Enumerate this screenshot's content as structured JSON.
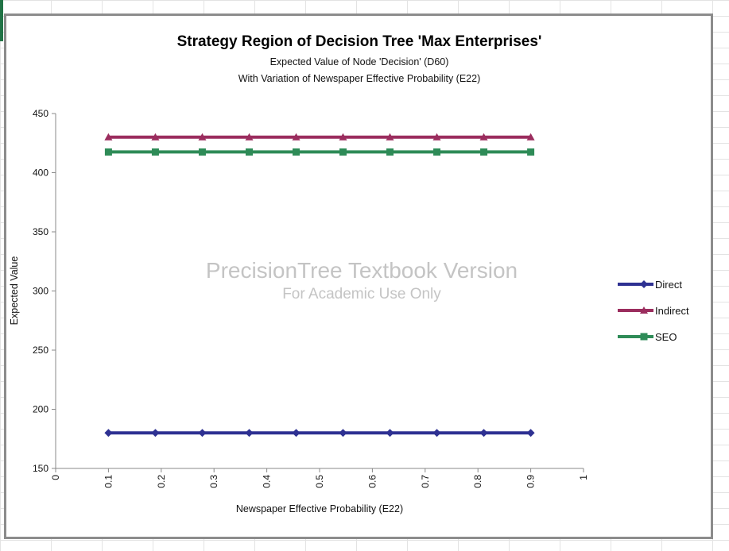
{
  "chart_data": {
    "type": "line",
    "title": "Strategy Region of Decision Tree 'Max Enterprises'",
    "subtitle_1": "Expected Value of Node 'Decision' (D60)",
    "subtitle_2": "With Variation of Newspaper Effective Probability (E22)",
    "xlabel": "Newspaper Effective Probability (E22)",
    "ylabel": "Expected Value",
    "xlim": [
      0,
      1
    ],
    "ylim": [
      150,
      450
    ],
    "x_ticks": [
      "0",
      "0.1",
      "0.2",
      "0.3",
      "0.4",
      "0.5",
      "0.6",
      "0.7",
      "0.8",
      "0.9",
      "1"
    ],
    "y_ticks": [
      "150",
      "200",
      "250",
      "300",
      "350",
      "400",
      "450"
    ],
    "x": [
      0.1,
      0.1889,
      0.2778,
      0.3667,
      0.4556,
      0.5444,
      0.6333,
      0.7222,
      0.8111,
      0.9
    ],
    "series": [
      {
        "name": "Direct",
        "color": "#2e3192",
        "marker": "diamond",
        "values": [
          180,
          180,
          180,
          180,
          180,
          180,
          180,
          180,
          180,
          180
        ]
      },
      {
        "name": "Indirect",
        "color": "#9b2d5e",
        "marker": "triangle",
        "values": [
          430,
          430,
          430,
          430,
          430,
          430,
          430,
          430,
          430,
          430
        ]
      },
      {
        "name": "SEO",
        "color": "#2e8b57",
        "marker": "square",
        "values": [
          417.5,
          417.5,
          417.5,
          417.5,
          417.5,
          417.5,
          417.5,
          417.5,
          417.5,
          417.5
        ]
      }
    ],
    "legend_position": "right",
    "grid": false
  },
  "watermark": {
    "line1": "PrecisionTree Textbook Version",
    "line2": "For Academic Use Only"
  }
}
